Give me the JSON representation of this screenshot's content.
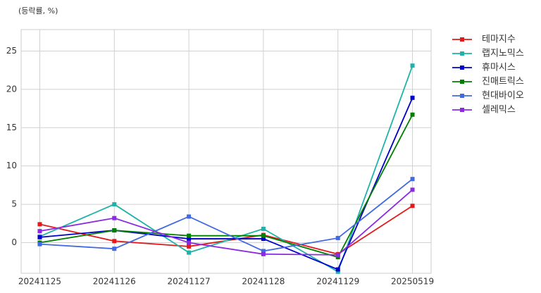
{
  "chart_data": {
    "type": "line",
    "subtitle": "(등락률, %)",
    "categories": [
      "20241125",
      "20241126",
      "20241127",
      "20241128",
      "20241129",
      "20250519"
    ],
    "series": [
      {
        "name": "테마지수",
        "color": "#e31a1c",
        "values": [
          2.4,
          0.2,
          -0.5,
          1.0,
          -1.5,
          4.8
        ]
      },
      {
        "name": "랩지노믹스",
        "color": "#20b2aa",
        "values": [
          0.8,
          5.0,
          -1.3,
          1.8,
          -3.8,
          23.1
        ]
      },
      {
        "name": "휴마시스",
        "color": "#0000cd",
        "values": [
          0.7,
          1.6,
          0.5,
          0.5,
          -3.5,
          18.9
        ]
      },
      {
        "name": "진매트릭스",
        "color": "#008000",
        "values": [
          0.0,
          1.6,
          0.9,
          0.9,
          -1.9,
          16.7
        ]
      },
      {
        "name": "현대바이오",
        "color": "#4169e1",
        "values": [
          -0.2,
          -0.8,
          3.4,
          -1.1,
          0.6,
          8.3
        ]
      },
      {
        "name": "셀레믹스",
        "color": "#8a2be2",
        "values": [
          1.5,
          3.2,
          0.0,
          -1.5,
          -1.6,
          6.9
        ]
      }
    ],
    "ylim": [
      -4,
      27.8
    ],
    "yticks": [
      0,
      5,
      10,
      15,
      20,
      25
    ],
    "grid": true,
    "legend": "outside-right"
  }
}
